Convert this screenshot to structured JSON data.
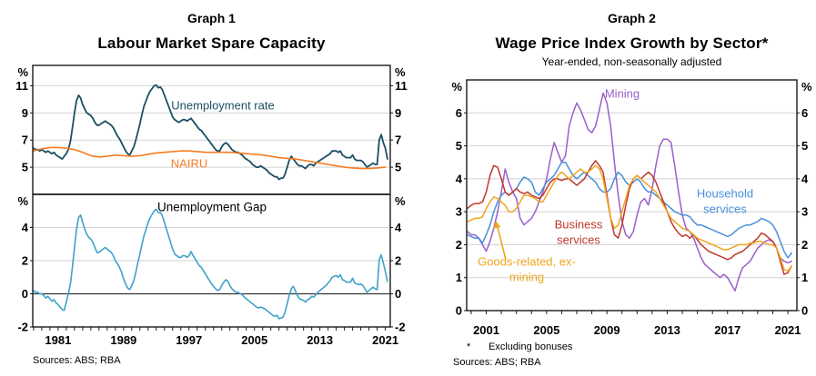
{
  "page": {
    "background": "#ffffff",
    "frame_color": "#1a1a1a",
    "gridline_color": "#d2d2d2"
  },
  "chart_data": [
    {
      "id": "labour-market-top-panel",
      "type": "line",
      "graph_label": "Graph 1",
      "title": "Labour Market Spare Capacity",
      "sources": "Sources: ABS; RBA",
      "unit": "%",
      "ylim": [
        3,
        12.5
      ],
      "yticks": [
        5,
        7,
        9,
        11
      ],
      "xlim": [
        1977.9,
        2021.6
      ],
      "xticks": [
        1981,
        1989,
        1997,
        2005,
        2013,
        2021
      ],
      "minor_xtick_step": 1,
      "grid": true,
      "legend_position": "in-plot labels",
      "series": [
        {
          "name": "Unemployment rate",
          "color": "#1c4f63",
          "width": 1.8,
          "start": 1978,
          "step": 0.25,
          "values": [
            6.4,
            6.3,
            6.3,
            6.2,
            6.3,
            6.2,
            6.1,
            6.2,
            6.1,
            6.0,
            6.1,
            5.9,
            5.8,
            5.7,
            5.6,
            5.8,
            6.0,
            6.3,
            6.9,
            7.9,
            9.0,
            9.9,
            10.3,
            10.1,
            9.6,
            9.3,
            9.0,
            8.9,
            8.8,
            8.6,
            8.3,
            8.1,
            8.1,
            8.2,
            8.3,
            8.4,
            8.3,
            8.2,
            8.1,
            7.9,
            7.6,
            7.3,
            7.1,
            6.8,
            6.5,
            6.2,
            6.0,
            5.9,
            6.2,
            6.5,
            7.0,
            7.6,
            8.2,
            8.9,
            9.5,
            9.9,
            10.3,
            10.6,
            10.8,
            11.0,
            11.05,
            10.85,
            10.9,
            10.7,
            10.3,
            9.9,
            9.5,
            9.1,
            8.7,
            8.5,
            8.4,
            8.3,
            8.4,
            8.5,
            8.5,
            8.4,
            8.5,
            8.6,
            8.4,
            8.2,
            8.0,
            7.8,
            7.7,
            7.5,
            7.3,
            7.1,
            6.9,
            6.7,
            6.5,
            6.3,
            6.2,
            6.2,
            6.5,
            6.7,
            6.8,
            6.7,
            6.5,
            6.3,
            6.2,
            6.1,
            6.1,
            6.0,
            5.9,
            5.7,
            5.6,
            5.5,
            5.4,
            5.2,
            5.1,
            5.0,
            5.0,
            5.1,
            5.0,
            4.9,
            4.8,
            4.6,
            4.5,
            4.4,
            4.3,
            4.3,
            4.1,
            4.2,
            4.2,
            4.5,
            5.0,
            5.5,
            5.8,
            5.6,
            5.4,
            5.2,
            5.1,
            5.1,
            5.0,
            4.9,
            5.1,
            5.2,
            5.2,
            5.1,
            5.3,
            5.4,
            5.5,
            5.6,
            5.7,
            5.8,
            5.9,
            6.0,
            6.2,
            6.2,
            6.2,
            6.1,
            6.2,
            5.9,
            5.8,
            5.7,
            5.7,
            5.7,
            5.9,
            5.6,
            5.5,
            5.5,
            5.5,
            5.4,
            5.2,
            5.0,
            5.1,
            5.2,
            5.3,
            5.2,
            5.2,
            7.0,
            7.4,
            6.8,
            6.4,
            5.6
          ]
        },
        {
          "name": "NAIRU",
          "color": "#f57c22",
          "width": 1.6,
          "start": 1978,
          "step": 1,
          "values": [
            6.2,
            6.35,
            6.45,
            6.45,
            6.4,
            6.3,
            6.1,
            5.85,
            5.75,
            5.8,
            5.9,
            5.85,
            5.8,
            5.85,
            5.95,
            6.05,
            6.1,
            6.15,
            6.2,
            6.2,
            6.15,
            6.1,
            6.1,
            6.1,
            6.1,
            6.05,
            6.0,
            5.95,
            5.9,
            5.8,
            5.7,
            5.65,
            5.6,
            5.5,
            5.4,
            5.3,
            5.2,
            5.1,
            5.0,
            4.95,
            4.9,
            4.9,
            4.95,
            5.0
          ]
        }
      ]
    },
    {
      "id": "labour-market-bottom-panel",
      "type": "line",
      "unit": "%",
      "ylim": [
        -2,
        6
      ],
      "yticks": [
        -2,
        0,
        2,
        4
      ],
      "zero_line": 0,
      "xlim": [
        1977.9,
        2021.6
      ],
      "xticks": [
        1981,
        1989,
        1997,
        2005,
        2013,
        2021
      ],
      "minor_xtick_step": 1,
      "grid": true,
      "series": [
        {
          "name": "Unemployment Gap",
          "color": "#3fa2c8",
          "width": 1.6,
          "start": 1978,
          "step": 0.25,
          "derived_from": "unemployment rate minus NAIRU",
          "values": [
            0.2,
            0.1,
            0.1,
            0.0,
            0.0,
            -0.1,
            -0.25,
            -0.15,
            -0.3,
            -0.45,
            -0.35,
            -0.55,
            -0.65,
            -0.8,
            -0.95,
            -1.0,
            -0.5,
            0.0,
            0.6,
            1.6,
            2.8,
            3.9,
            4.6,
            4.75,
            4.3,
            3.9,
            3.6,
            3.4,
            3.3,
            3.1,
            2.8,
            2.5,
            2.5,
            2.6,
            2.7,
            2.8,
            2.7,
            2.6,
            2.5,
            2.3,
            2.0,
            1.8,
            1.6,
            1.3,
            0.9,
            0.6,
            0.35,
            0.25,
            0.5,
            0.8,
            1.3,
            1.9,
            2.4,
            3.0,
            3.5,
            3.9,
            4.3,
            4.6,
            4.8,
            5.0,
            5.1,
            4.9,
            4.9,
            4.7,
            4.3,
            3.9,
            3.5,
            3.1,
            2.7,
            2.4,
            2.3,
            2.2,
            2.2,
            2.3,
            2.3,
            2.2,
            2.3,
            2.55,
            2.3,
            2.1,
            1.9,
            1.7,
            1.6,
            1.4,
            1.2,
            1.0,
            0.8,
            0.6,
            0.45,
            0.3,
            0.2,
            0.25,
            0.5,
            0.7,
            0.85,
            0.75,
            0.5,
            0.3,
            0.2,
            0.1,
            0.1,
            0.0,
            -0.05,
            -0.2,
            -0.3,
            -0.4,
            -0.5,
            -0.6,
            -0.7,
            -0.8,
            -0.85,
            -0.8,
            -0.85,
            -0.9,
            -1.0,
            -1.1,
            -1.2,
            -1.3,
            -1.35,
            -1.3,
            -1.5,
            -1.45,
            -1.4,
            -1.1,
            -0.6,
            -0.1,
            0.3,
            0.45,
            0.2,
            -0.1,
            -0.3,
            -0.35,
            -0.4,
            -0.5,
            -0.35,
            -0.3,
            -0.15,
            -0.2,
            -0.05,
            0.1,
            0.2,
            0.3,
            0.4,
            0.5,
            0.65,
            0.8,
            1.0,
            1.05,
            1.1,
            1.0,
            1.15,
            0.85,
            0.8,
            0.7,
            0.7,
            0.7,
            0.95,
            0.65,
            0.6,
            0.55,
            0.6,
            0.5,
            0.3,
            0.1,
            0.2,
            0.3,
            0.4,
            0.3,
            0.25,
            2.05,
            2.35,
            1.85,
            1.35,
            0.75
          ]
        }
      ]
    },
    {
      "id": "wpi-growth-by-sector",
      "type": "line",
      "graph_label": "Graph 2",
      "title": "Wage Price Index Growth by Sector*",
      "subtitle": "Year-ended, non-seasonally adjusted",
      "footnote_marker": "*",
      "footnote": "Excluding bonuses",
      "sources": "Sources: ABS; RBA",
      "unit": "%",
      "ylim": [
        0,
        7
      ],
      "yticks": [
        0,
        1,
        2,
        3,
        4,
        5,
        6
      ],
      "xlim": [
        1999.7,
        2021.6
      ],
      "xticks": [
        2001,
        2005,
        2009,
        2013,
        2017,
        2021
      ],
      "minor_xtick_step": 1,
      "grid": true,
      "legend_position": "in-plot labels",
      "series": [
        {
          "name": "Mining",
          "color": "#9a5fc9",
          "width": 1.5,
          "start": 1999.75,
          "step": 0.25,
          "values": [
            2.4,
            2.3,
            2.3,
            2.2,
            2.0,
            1.8,
            2.1,
            2.5,
            3.0,
            3.6,
            4.3,
            3.9,
            3.6,
            3.4,
            2.8,
            2.6,
            2.7,
            2.8,
            3.0,
            3.3,
            3.6,
            4.0,
            4.6,
            5.1,
            4.8,
            4.5,
            4.7,
            5.6,
            6.0,
            6.3,
            6.1,
            5.8,
            5.5,
            5.4,
            5.6,
            6.1,
            6.6,
            6.3,
            5.6,
            4.5,
            3.5,
            2.7,
            2.3,
            2.2,
            2.4,
            2.9,
            3.3,
            3.4,
            3.2,
            3.7,
            4.4,
            5.0,
            5.2,
            5.2,
            5.1,
            4.4,
            3.6,
            2.9,
            2.5,
            2.4,
            2.2,
            1.9,
            1.6,
            1.4,
            1.3,
            1.2,
            1.1,
            1.0,
            1.1,
            1.0,
            0.8,
            0.6,
            1.0,
            1.3,
            1.4,
            1.5,
            1.7,
            1.9,
            2.0,
            2.1,
            2.15,
            2.1,
            1.9,
            1.6,
            1.5,
            1.45,
            1.5
          ]
        },
        {
          "name": "Household services",
          "color": "#4a90d9",
          "width": 1.5,
          "start": 1999.75,
          "step": 0.25,
          "values": [
            2.3,
            2.25,
            2.2,
            2.2,
            2.05,
            2.3,
            2.6,
            3.0,
            3.3,
            3.5,
            3.6,
            3.5,
            3.6,
            3.7,
            3.9,
            4.05,
            4.0,
            3.9,
            3.6,
            3.5,
            3.7,
            3.9,
            4.0,
            4.1,
            4.3,
            4.5,
            4.5,
            4.3,
            4.1,
            4.0,
            4.1,
            4.2,
            4.1,
            4.0,
            3.9,
            3.7,
            3.6,
            3.6,
            3.7,
            4.0,
            4.2,
            4.1,
            3.9,
            3.8,
            3.9,
            4.0,
            3.9,
            3.7,
            3.6,
            3.6,
            3.5,
            3.4,
            3.3,
            3.2,
            3.1,
            3.0,
            2.95,
            2.9,
            2.9,
            2.85,
            2.7,
            2.6,
            2.6,
            2.55,
            2.5,
            2.45,
            2.4,
            2.35,
            2.3,
            2.25,
            2.3,
            2.4,
            2.5,
            2.55,
            2.6,
            2.6,
            2.65,
            2.7,
            2.8,
            2.75,
            2.7,
            2.6,
            2.4,
            2.1,
            1.8,
            1.6,
            1.75
          ]
        },
        {
          "name": "Business services",
          "color": "#c0392b",
          "width": 1.5,
          "start": 1999.75,
          "step": 0.25,
          "values": [
            3.1,
            3.2,
            3.25,
            3.25,
            3.3,
            3.6,
            4.1,
            4.4,
            4.35,
            4.0,
            3.6,
            3.5,
            3.6,
            3.7,
            3.6,
            3.55,
            3.6,
            3.5,
            3.45,
            3.4,
            3.5,
            3.7,
            3.9,
            4.0,
            4.0,
            3.95,
            4.0,
            4.0,
            3.9,
            3.8,
            3.9,
            4.0,
            4.2,
            4.4,
            4.55,
            4.4,
            4.2,
            3.5,
            2.8,
            2.3,
            2.2,
            2.6,
            3.2,
            3.7,
            4.0,
            4.1,
            4.0,
            4.1,
            4.2,
            4.1,
            3.9,
            3.6,
            3.3,
            3.0,
            2.7,
            2.5,
            2.35,
            2.25,
            2.3,
            2.2,
            2.3,
            2.15,
            2.0,
            1.9,
            1.8,
            1.75,
            1.7,
            1.65,
            1.6,
            1.55,
            1.6,
            1.7,
            1.75,
            1.8,
            1.9,
            2.0,
            2.1,
            2.2,
            2.35,
            2.3,
            2.2,
            2.1,
            1.9,
            1.5,
            1.1,
            1.15,
            1.35
          ]
        },
        {
          "name": "Goods-related, ex-mining",
          "color": "#f0a51f",
          "width": 1.5,
          "start": 1999.75,
          "step": 0.25,
          "values": [
            2.7,
            2.75,
            2.8,
            2.8,
            2.85,
            3.1,
            3.3,
            3.45,
            3.4,
            3.3,
            3.2,
            3.0,
            3.0,
            3.1,
            3.3,
            3.5,
            3.5,
            3.45,
            3.4,
            3.3,
            3.3,
            3.5,
            3.7,
            3.9,
            4.1,
            4.2,
            4.1,
            4.0,
            4.1,
            4.2,
            4.3,
            4.2,
            4.2,
            4.3,
            4.4,
            4.3,
            4.0,
            3.4,
            2.8,
            2.5,
            2.6,
            3.0,
            3.4,
            3.8,
            4.0,
            4.1,
            4.0,
            3.9,
            3.8,
            3.7,
            3.6,
            3.4,
            3.2,
            3.0,
            2.8,
            2.7,
            2.6,
            2.5,
            2.45,
            2.4,
            2.3,
            2.2,
            2.15,
            2.1,
            2.05,
            2.0,
            1.95,
            1.9,
            1.85,
            1.85,
            1.9,
            1.95,
            2.0,
            2.0,
            2.0,
            2.05,
            2.05,
            2.1,
            2.1,
            2.05,
            2.0,
            2.0,
            1.9,
            1.6,
            1.25,
            1.2,
            1.35
          ]
        }
      ]
    }
  ]
}
